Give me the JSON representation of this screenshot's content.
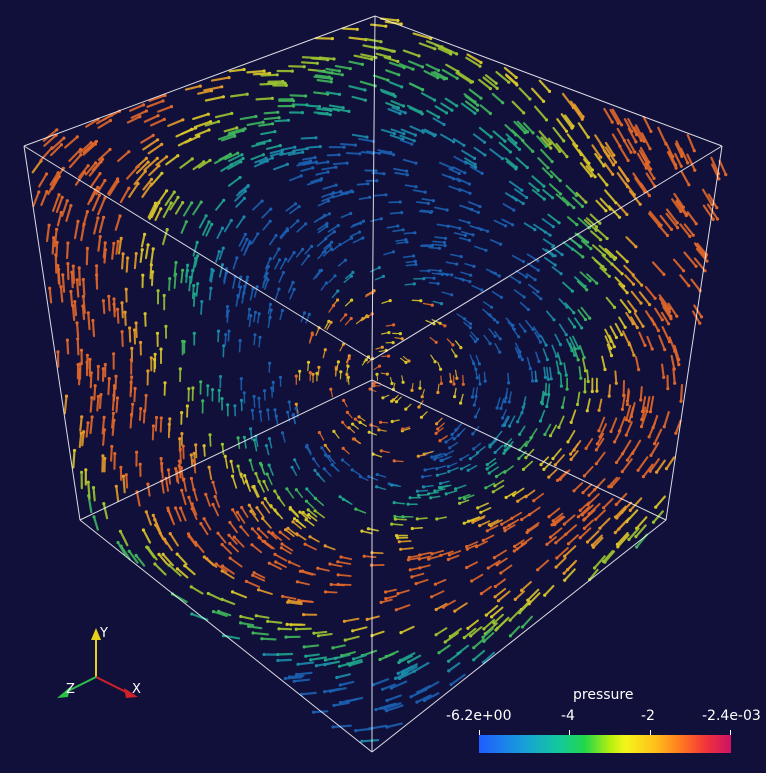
{
  "colorbar": {
    "title": "pressure",
    "ticks": [
      "-6.2e+00",
      "-4",
      "-2",
      "-2.4e-03"
    ],
    "colors": [
      "#1f5cff",
      "#13c99a",
      "#22d64a",
      "#f5f51a",
      "#ff7a1e",
      "#cc1266"
    ]
  },
  "axes": {
    "y": "Y",
    "z": "Z",
    "x": "X"
  },
  "background": "#11103a",
  "outline_color": "#ffffff",
  "glyph_palette": [
    "#1b5fb0",
    "#1b8aa8",
    "#1fa58c",
    "#3fb55c",
    "#9cc431",
    "#d9c62a",
    "#e49a2a",
    "#e0672a",
    "#cf3a2a"
  ]
}
